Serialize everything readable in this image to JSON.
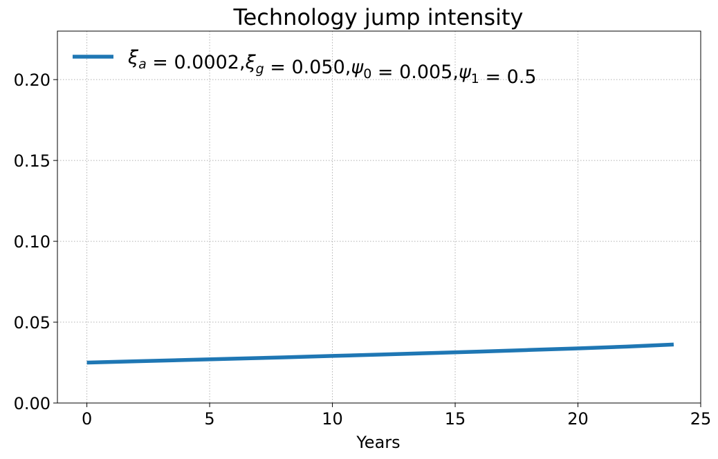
{
  "chart_data": {
    "type": "line",
    "title": "Technology jump intensity",
    "xlabel": "Years",
    "ylabel": "",
    "xlim": [
      -1.2,
      25.0
    ],
    "ylim": [
      0,
      0.23
    ],
    "xticks": [
      0,
      5,
      10,
      15,
      20,
      25
    ],
    "xtick_labels": [
      "0",
      "5",
      "10",
      "15",
      "20",
      "25"
    ],
    "yticks": [
      0,
      0.05,
      0.1,
      0.15,
      0.2
    ],
    "ytick_labels": [
      "0.00",
      "0.05",
      "0.10",
      "0.15",
      "0.20"
    ],
    "grid": true,
    "legend_placement": "top-left",
    "colors": {
      "series": "#1f77b4",
      "grid": "#b0b0b0"
    },
    "series": [
      {
        "name": "ξa = 0.0002,ξg = 0.050,ψ0 = 0.005,ψ1 = 0.5",
        "legend": [
          {
            "t": "ξ",
            "it": true
          },
          {
            "t": "a",
            "sub": true,
            "it": true
          },
          {
            "t": " = 0.0002,"
          },
          {
            "t": "ξ",
            "it": true
          },
          {
            "t": "g",
            "sub": true,
            "it": true
          },
          {
            "t": " = 0.050,"
          },
          {
            "t": "ψ",
            "it": true
          },
          {
            "t": "0",
            "sub": true
          },
          {
            "t": " = 0.005,"
          },
          {
            "t": "ψ",
            "it": true
          },
          {
            "t": "1",
            "sub": true
          },
          {
            "t": " = 0.5"
          }
        ],
        "x": [
          0,
          2,
          4,
          6,
          8,
          10,
          12,
          14,
          16,
          18,
          20,
          22,
          23.9
        ],
        "y": [
          0.025,
          0.0258,
          0.0266,
          0.0274,
          0.0282,
          0.0291,
          0.03,
          0.0309,
          0.0318,
          0.0328,
          0.0338,
          0.0349,
          0.0362
        ]
      }
    ]
  }
}
